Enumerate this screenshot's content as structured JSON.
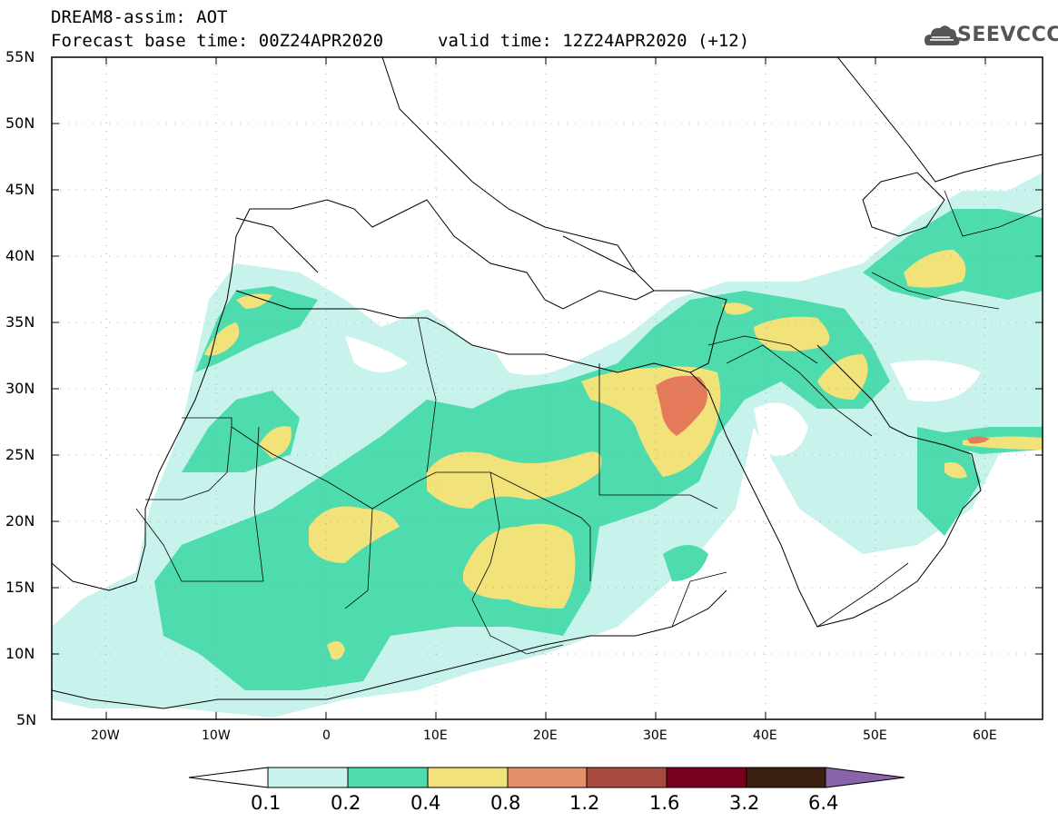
{
  "header": {
    "title_line1": "DREAM8-assim: AOT",
    "title_line2": "Forecast base time: 00Z24APR2020",
    "valid_time": "valid time: 12Z24APR2020 (+12)"
  },
  "logo": {
    "text": "SEEVCCC",
    "icon": "cloud-icon"
  },
  "axes": {
    "lat_labels": [
      "55N",
      "50N",
      "45N",
      "40N",
      "35N",
      "30N",
      "25N",
      "20N",
      "15N",
      "10N",
      "5N"
    ],
    "lon_labels": [
      "20W",
      "10W",
      "0",
      "10E",
      "20E",
      "30E",
      "40E",
      "50E",
      "60E"
    ]
  },
  "colorbar": {
    "labels": [
      "0.1",
      "0.2",
      "0.4",
      "0.8",
      "1.2",
      "1.6",
      "3.2",
      "6.4"
    ],
    "colors": [
      "#c8f2ec",
      "#4edcae",
      "#f2e27a",
      "#e6906a",
      "#a84a3e",
      "#7a0020",
      "#3c2010",
      "#8a64a8"
    ]
  },
  "map_colors": {
    "light": "#c8f2ec",
    "green": "#4edcae",
    "yellow": "#f2e27a",
    "orange": "#e6906a",
    "red": "#e57a5a"
  }
}
